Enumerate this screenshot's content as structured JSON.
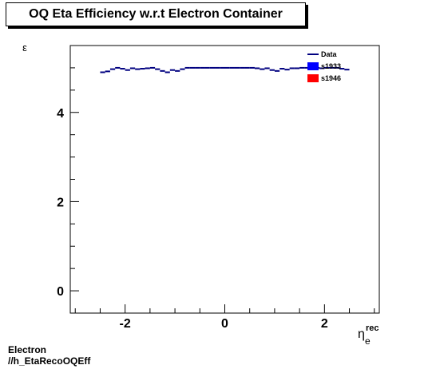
{
  "chart_data": {
    "type": "line",
    "title": "OQ Eta Efficiency w.r.t Electron Container",
    "ylabel": "ε",
    "xlabel_main": "η",
    "xlabel_sup": "rec",
    "xlabel_sub": "e",
    "xlim": [
      -3.1,
      3.1
    ],
    "ylim": [
      -0.5,
      5.5
    ],
    "x_ticks": [
      -2,
      0,
      2
    ],
    "y_ticks": [
      0,
      2,
      4
    ],
    "legend_position": "top-right",
    "legend": [
      {
        "name": "Data",
        "style": "line",
        "color": "#000080"
      },
      {
        "name": "s1933",
        "style": "box",
        "color": "#0000ff"
      },
      {
        "name": "s1946",
        "style": "box",
        "color": "#ff0000"
      }
    ],
    "series": [
      {
        "name": "Data",
        "color": "#000080",
        "bin_width": 0.1,
        "x": [
          -2.45,
          -2.35,
          -2.25,
          -2.15,
          -2.05,
          -1.95,
          -1.85,
          -1.75,
          -1.65,
          -1.55,
          -1.45,
          -1.35,
          -1.25,
          -1.15,
          -1.05,
          -0.95,
          -0.85,
          -0.75,
          -0.65,
          -0.55,
          -0.45,
          -0.35,
          -0.25,
          -0.15,
          -0.05,
          0.05,
          0.15,
          0.25,
          0.35,
          0.45,
          0.55,
          0.65,
          0.75,
          0.85,
          0.95,
          1.05,
          1.15,
          1.25,
          1.35,
          1.45,
          1.55,
          1.65,
          1.75,
          1.85,
          1.95,
          2.05,
          2.15,
          2.25,
          2.35,
          2.45
        ],
        "y": [
          4.9,
          4.92,
          4.97,
          5.0,
          4.98,
          4.95,
          4.99,
          4.97,
          4.98,
          4.99,
          5.0,
          4.97,
          4.93,
          4.9,
          4.95,
          4.93,
          4.97,
          5.0,
          5.0,
          5.0,
          5.0,
          5.0,
          5.0,
          5.0,
          5.0,
          5.0,
          5.0,
          5.0,
          5.0,
          5.0,
          5.0,
          4.99,
          4.97,
          4.99,
          4.95,
          4.93,
          4.98,
          4.96,
          4.99,
          4.99,
          5.0,
          5.0,
          5.0,
          5.0,
          4.99,
          5.0,
          5.0,
          5.0,
          4.98,
          4.96
        ]
      }
    ]
  },
  "footer": {
    "line1": "Electron",
    "line2": "//h_EtaRecoOQEff"
  }
}
